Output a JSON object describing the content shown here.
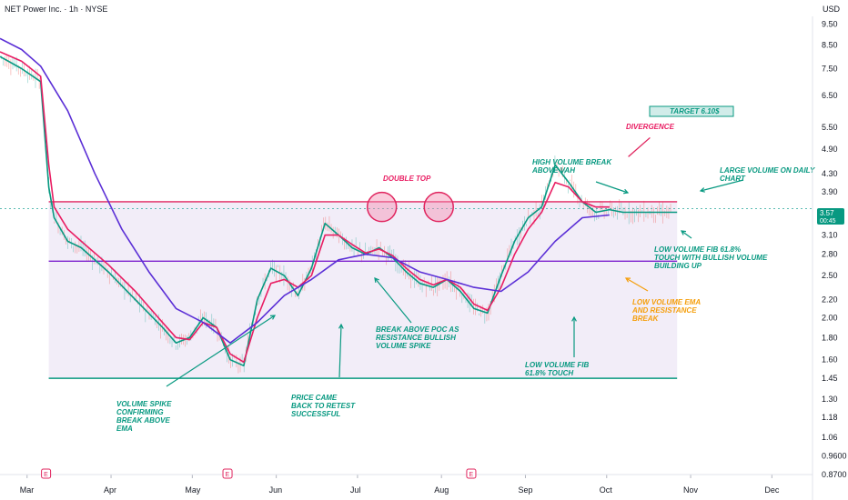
{
  "header": {
    "title": "NET Power Inc. · 1h · NYSE",
    "currency": "USD"
  },
  "price_badge": {
    "value": "3.57",
    "countdown": "00:45"
  },
  "colors": {
    "ema_fast": "#089981",
    "ema_mid": "#e91e63",
    "ema_slow": "#5b2fd6",
    "resistance": "#e0245e",
    "poc": "#7e22ce",
    "support": "#089981",
    "range_fill": "#ede7f6",
    "annotation_green": "#089981",
    "annotation_pink": "#e91e63",
    "annotation_orange": "#f59e0b",
    "up_candle": "#26a69a",
    "down_candle": "#ef5350",
    "badge": "#089981"
  },
  "earnings_marker": "E",
  "chart_data": {
    "type": "line",
    "xlabel": "",
    "ylabel": "",
    "x_ticks": [
      "Mar",
      "Apr",
      "May",
      "Jun",
      "Jul",
      "Aug",
      "Sep",
      "Oct",
      "Nov",
      "Dec"
    ],
    "y_ticks": [
      "9.50",
      "8.50",
      "7.50",
      "6.50",
      "5.50",
      "4.90",
      "4.30",
      "3.90",
      "3.50",
      "3.10",
      "2.80",
      "2.50",
      "2.20",
      "2.00",
      "1.80",
      "1.60",
      "1.45",
      "1.30",
      "1.18",
      "1.06",
      "0.9600",
      "0.8700"
    ],
    "y_scale": "log",
    "ylim": [
      0.87,
      9.9
    ],
    "x_domain_days": [
      0,
      300
    ],
    "series": [
      {
        "key": "ema_fast",
        "x": [
          0,
          8,
          15,
          18,
          20,
          25,
          30,
          40,
          50,
          60,
          65,
          70,
          75,
          80,
          85,
          90,
          95,
          100,
          105,
          110,
          115,
          120,
          125,
          130,
          135,
          140,
          145,
          150,
          155,
          160,
          165,
          170,
          175,
          180,
          185,
          190,
          195,
          200,
          205,
          210,
          215,
          220,
          225,
          230,
          235,
          240,
          245,
          250
        ],
        "values": [
          8.0,
          7.5,
          7.0,
          4.0,
          3.4,
          3.0,
          2.9,
          2.55,
          2.2,
          1.9,
          1.75,
          1.8,
          2.0,
          1.9,
          1.6,
          1.55,
          2.2,
          2.6,
          2.5,
          2.25,
          2.6,
          3.3,
          3.1,
          2.9,
          2.8,
          2.9,
          2.75,
          2.55,
          2.4,
          2.35,
          2.45,
          2.3,
          2.1,
          2.05,
          2.5,
          3.0,
          3.4,
          3.6,
          4.5,
          4.1,
          3.7,
          3.5,
          3.55,
          3.5,
          3.5,
          3.5,
          3.5,
          3.5
        ]
      },
      {
        "key": "ema_mid",
        "x": [
          0,
          8,
          15,
          18,
          20,
          25,
          30,
          40,
          50,
          60,
          65,
          70,
          75,
          80,
          85,
          90,
          95,
          100,
          105,
          110,
          115,
          120,
          125,
          130,
          135,
          140,
          145,
          150,
          155,
          160,
          165,
          170,
          175,
          180,
          185,
          190,
          195,
          200,
          205,
          210,
          215,
          220,
          225
        ],
        "values": [
          8.2,
          7.8,
          7.2,
          4.5,
          3.6,
          3.2,
          3.0,
          2.65,
          2.3,
          1.95,
          1.8,
          1.78,
          1.95,
          1.9,
          1.65,
          1.58,
          2.0,
          2.4,
          2.45,
          2.35,
          2.5,
          3.1,
          3.1,
          2.95,
          2.82,
          2.88,
          2.78,
          2.6,
          2.45,
          2.38,
          2.45,
          2.35,
          2.15,
          2.08,
          2.35,
          2.8,
          3.2,
          3.5,
          4.1,
          4.0,
          3.7,
          3.6,
          3.6
        ]
      },
      {
        "key": "ema_slow",
        "x": [
          0,
          8,
          15,
          25,
          35,
          45,
          55,
          65,
          75,
          85,
          95,
          105,
          115,
          125,
          135,
          145,
          155,
          165,
          175,
          185,
          195,
          205,
          215,
          225
        ],
        "values": [
          8.8,
          8.3,
          7.6,
          6.0,
          4.3,
          3.2,
          2.55,
          2.1,
          1.95,
          1.75,
          1.95,
          2.25,
          2.45,
          2.72,
          2.8,
          2.75,
          2.55,
          2.45,
          2.35,
          2.3,
          2.55,
          3.0,
          3.4,
          3.45
        ]
      }
    ],
    "levels": {
      "resistance": 3.7,
      "poc": 2.7,
      "support": 1.45,
      "target": 6.1
    },
    "annotations": [
      {
        "id": "target",
        "lines": [
          "TARGET 6.10$"
        ],
        "color": "annotation_green",
        "boxed": true
      },
      {
        "id": "divergence",
        "lines": [
          "DIVERGENCE"
        ],
        "color": "annotation_pink"
      },
      {
        "id": "double-top",
        "lines": [
          "DOUBLE TOP"
        ],
        "color": "annotation_pink"
      },
      {
        "id": "high-volume-break",
        "lines": [
          "HIGH VOLUME BREAK",
          "ABOVE VAH"
        ],
        "color": "annotation_green"
      },
      {
        "id": "large-volume",
        "lines": [
          "LARGE VOLUME ON DAILY",
          "CHART"
        ],
        "color": "annotation_green"
      },
      {
        "id": "low-volume-fib-bullish",
        "lines": [
          "LOW VOLUME FIB 61.8%",
          "TOUCH WITH BULLISH VOLUME",
          "BUILDING UP"
        ],
        "color": "annotation_green"
      },
      {
        "id": "low-volume-ema",
        "lines": [
          "LOW VOLUME EMA",
          "AND RESISTANCE",
          "BREAK"
        ],
        "color": "annotation_orange"
      },
      {
        "id": "break-above-poc",
        "lines": [
          "BREAK ABOVE POC AS",
          "RESISTANCE BULLISH",
          "VOLUME SPIKE"
        ],
        "color": "annotation_green"
      },
      {
        "id": "low-volume-fib",
        "lines": [
          "LOW VOLUME FIB",
          "61.8% TOUCH"
        ],
        "color": "annotation_green"
      },
      {
        "id": "volume-spike",
        "lines": [
          "VOLUME SPIKE",
          "CONFIRMING",
          "BREAK ABOVE",
          "EMA"
        ],
        "color": "annotation_green"
      },
      {
        "id": "price-retest",
        "lines": [
          "PRICE CAME",
          "BACK TO RETEST",
          "SUCCESSFUL"
        ],
        "color": "annotation_green"
      }
    ]
  }
}
